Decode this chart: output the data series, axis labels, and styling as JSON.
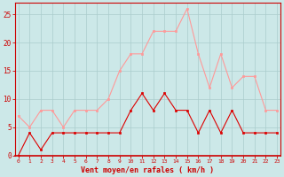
{
  "x": [
    0,
    1,
    2,
    3,
    4,
    5,
    6,
    7,
    8,
    9,
    10,
    11,
    12,
    13,
    14,
    15,
    16,
    17,
    18,
    19,
    20,
    21,
    22,
    23
  ],
  "mean_wind": [
    0,
    4,
    1,
    4,
    4,
    4,
    4,
    4,
    4,
    4,
    8,
    11,
    8,
    11,
    8,
    8,
    4,
    8,
    4,
    8,
    4,
    4,
    4,
    4
  ],
  "gust_wind": [
    7,
    5,
    8,
    8,
    5,
    8,
    8,
    8,
    10,
    15,
    18,
    18,
    22,
    22,
    22,
    26,
    18,
    12,
    18,
    12,
    14,
    14,
    8,
    8
  ],
  "line_color_mean": "#dd0000",
  "line_color_gust": "#ff9999",
  "bg_color": "#cce8e8",
  "grid_color": "#aacccc",
  "xlabel": "Vent moyen/en rafales ( km/h )",
  "yticks": [
    0,
    5,
    10,
    15,
    20,
    25
  ],
  "ylim": [
    0,
    27
  ],
  "xlim": [
    -0.3,
    23.3
  ],
  "tick_color": "#cc0000",
  "xlabel_color": "#cc0000",
  "axis_color": "#cc0000",
  "marker_size": 2.0
}
